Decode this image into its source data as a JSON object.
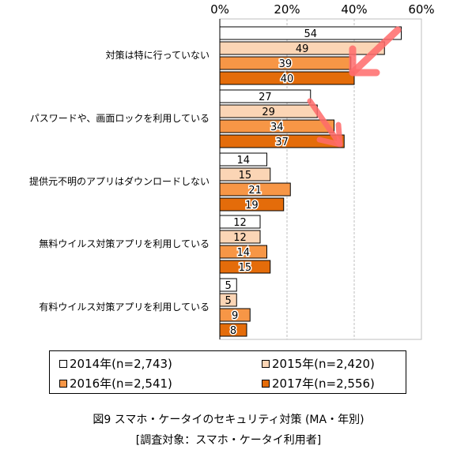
{
  "chart_data": {
    "type": "bar",
    "orientation": "horizontal",
    "categories": [
      "対策は特に行っていない",
      "パスワードや、画面ロックを利用している",
      "提供元不明のアプリはダウンロードしない",
      "無料ウイルス対策アプリを利用している",
      "有料ウイルス対策アプリを利用している"
    ],
    "series": [
      {
        "name": "2014年(n=2,743)",
        "values": [
          54,
          27,
          14,
          12,
          5
        ]
      },
      {
        "name": "2015年(n=2,420)",
        "values": [
          49,
          29,
          15,
          12,
          5
        ]
      },
      {
        "name": "2016年(n=2,541)",
        "values": [
          39,
          34,
          21,
          14,
          9
        ]
      },
      {
        "name": "2017年(n=2,556)",
        "values": [
          40,
          37,
          19,
          15,
          8
        ]
      }
    ],
    "xticks": [
      "0%",
      "20%",
      "40%",
      "60%"
    ],
    "xlim": [
      0,
      60
    ],
    "grid": true,
    "legend_position": "bottom",
    "colors": [
      "#ffffff",
      "#fbd5b5",
      "#f79646",
      "#e46c0a"
    ],
    "arrow_color": "#ff6b6b",
    "title": "図9 スマホ・ケータイのセキュリティ対策 (MA・年別)",
    "subtitle": "[調査対象：スマホ・ケータイ利用者]"
  }
}
